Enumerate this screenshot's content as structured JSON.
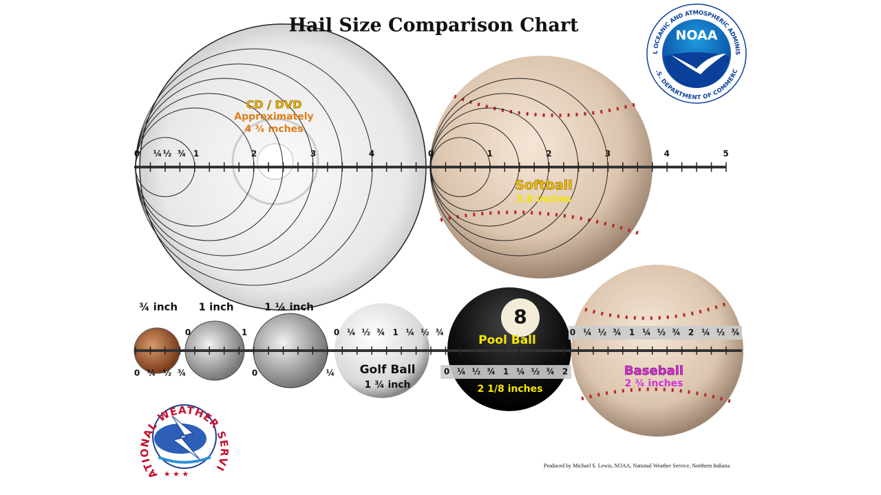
{
  "title": "Hail Size Comparison Chart",
  "noaa_logo": {
    "label": "NOAA",
    "ring_text": "NATIONAL OCEANIC AND ATMOSPHERIC ADMINISTRATION",
    "bottom_text": "U.S. DEPARTMENT OF COMMERCE"
  },
  "nws_logo": {
    "ring_text": "NATIONAL WEATHER SERVICE"
  },
  "large_scale": {
    "left": [
      "0",
      "¼",
      "½",
      "¾",
      "1",
      "2",
      "3",
      "4"
    ],
    "right": [
      "0",
      "1",
      "2",
      "3",
      "4",
      "5"
    ]
  },
  "cd": {
    "name": "CD / DVD",
    "note": "Approximately",
    "size": "4 ¾ inches"
  },
  "softball": {
    "name": "Softball",
    "size": "3.8 inches"
  },
  "coins": [
    {
      "size": "¾ inch"
    },
    {
      "size": "1 inch"
    },
    {
      "size": "1 ¼ inch"
    }
  ],
  "coin_scale": {
    "penny": [
      "0",
      "¼",
      "½",
      "¾"
    ],
    "quarter": [
      "0",
      "1"
    ],
    "half_dollar": [
      "0",
      "¼"
    ]
  },
  "golf_ball": {
    "name": "Golf Ball",
    "size": "1 ¾ inch",
    "scale": [
      "0",
      "¼",
      "½",
      "¾",
      "1",
      "¼",
      "½",
      "¾"
    ]
  },
  "pool_ball": {
    "name": "Pool Ball",
    "number": "8",
    "size": "2 1/8 inches",
    "scale": [
      "0",
      "¼",
      "½",
      "¾",
      "1",
      "¼",
      "½",
      "¾",
      "2"
    ]
  },
  "baseball": {
    "name": "Baseball",
    "size": "2 ¾ inches",
    "scale": [
      "0",
      "¼",
      "½",
      "¾",
      "1",
      "¼",
      "½",
      "¾",
      "2",
      "¼",
      "½",
      "¾"
    ]
  },
  "credit": "Produced by Michael S. Lewis, NOAA, National Weather Service, Northern Indiana"
}
